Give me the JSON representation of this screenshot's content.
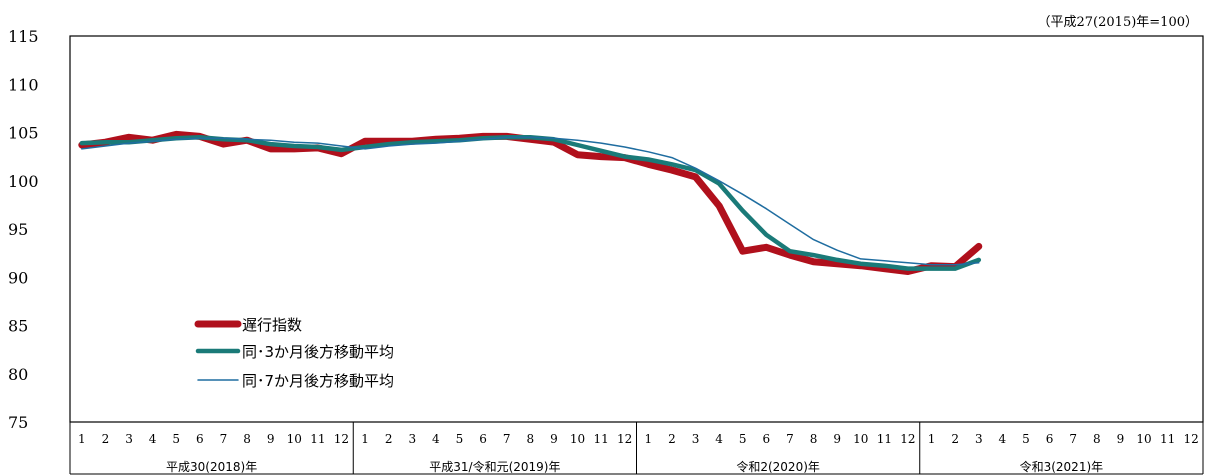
{
  "chart_data": {
    "type": "line",
    "note": "（平成27(2015)年=100）",
    "ylim": [
      75,
      115
    ],
    "yticks": [
      "115",
      "110",
      "105",
      "100",
      "95",
      "90",
      "85",
      "80",
      "75"
    ],
    "years": [
      {
        "label": "平成30(2018)年",
        "months": [
          "1",
          "2",
          "3",
          "4",
          "5",
          "6",
          "7",
          "8",
          "9",
          "10",
          "11",
          "12"
        ]
      },
      {
        "label": "平成31/令和元(2019)年",
        "months": [
          "1",
          "2",
          "3",
          "4",
          "5",
          "6",
          "7",
          "8",
          "9",
          "10",
          "11",
          "12"
        ]
      },
      {
        "label": "令和2(2020)年",
        "months": [
          "1",
          "2",
          "3",
          "4",
          "5",
          "6",
          "7",
          "8",
          "9",
          "10",
          "11",
          "12"
        ]
      },
      {
        "label": "令和3(2021)年",
        "months": [
          "1",
          "2",
          "3",
          "4",
          "5",
          "6",
          "7",
          "8",
          "9",
          "10",
          "11",
          "12"
        ]
      }
    ],
    "series": [
      {
        "name": "遅行指数",
        "color": "#b0101c",
        "values": [
          103.7,
          104.0,
          104.5,
          104.2,
          104.8,
          104.6,
          103.8,
          104.2,
          103.3,
          103.3,
          103.4,
          102.8,
          104.1,
          104.1,
          104.1,
          104.3,
          104.4,
          104.6,
          104.6,
          104.3,
          104.0,
          102.7,
          102.5,
          102.4,
          101.7,
          101.1,
          100.4,
          97.4,
          92.7,
          93.1,
          92.3,
          91.6,
          91.4,
          91.2,
          90.9,
          90.6,
          91.2,
          91.1,
          93.2
        ]
      },
      {
        "name": "同･3か月後方移動平均",
        "color": "#1a7a78",
        "values": [
          103.9,
          104.0,
          104.0,
          104.2,
          104.4,
          104.5,
          104.3,
          104.2,
          103.8,
          103.6,
          103.5,
          103.2,
          103.5,
          103.8,
          104.0,
          104.1,
          104.2,
          104.4,
          104.5,
          104.5,
          104.3,
          103.7,
          103.1,
          102.5,
          102.2,
          101.7,
          101.1,
          99.7,
          96.9,
          94.4,
          92.7,
          92.3,
          91.8,
          91.4,
          91.2,
          90.9,
          90.9,
          90.9,
          91.8
        ]
      },
      {
        "name": "同･7か月後方移動平均",
        "color": "#1f6da0",
        "values": [
          103.3,
          103.6,
          103.9,
          104.1,
          104.3,
          104.4,
          104.4,
          104.3,
          104.2,
          104.0,
          103.9,
          103.6,
          103.3,
          103.6,
          103.8,
          103.9,
          104.1,
          104.3,
          104.5,
          104.5,
          104.4,
          104.2,
          103.9,
          103.5,
          103.0,
          102.4,
          101.3,
          100.0,
          98.6,
          97.1,
          95.5,
          93.9,
          92.8,
          91.9,
          91.7,
          91.5,
          91.3,
          91.3,
          91.5
        ]
      }
    ]
  }
}
